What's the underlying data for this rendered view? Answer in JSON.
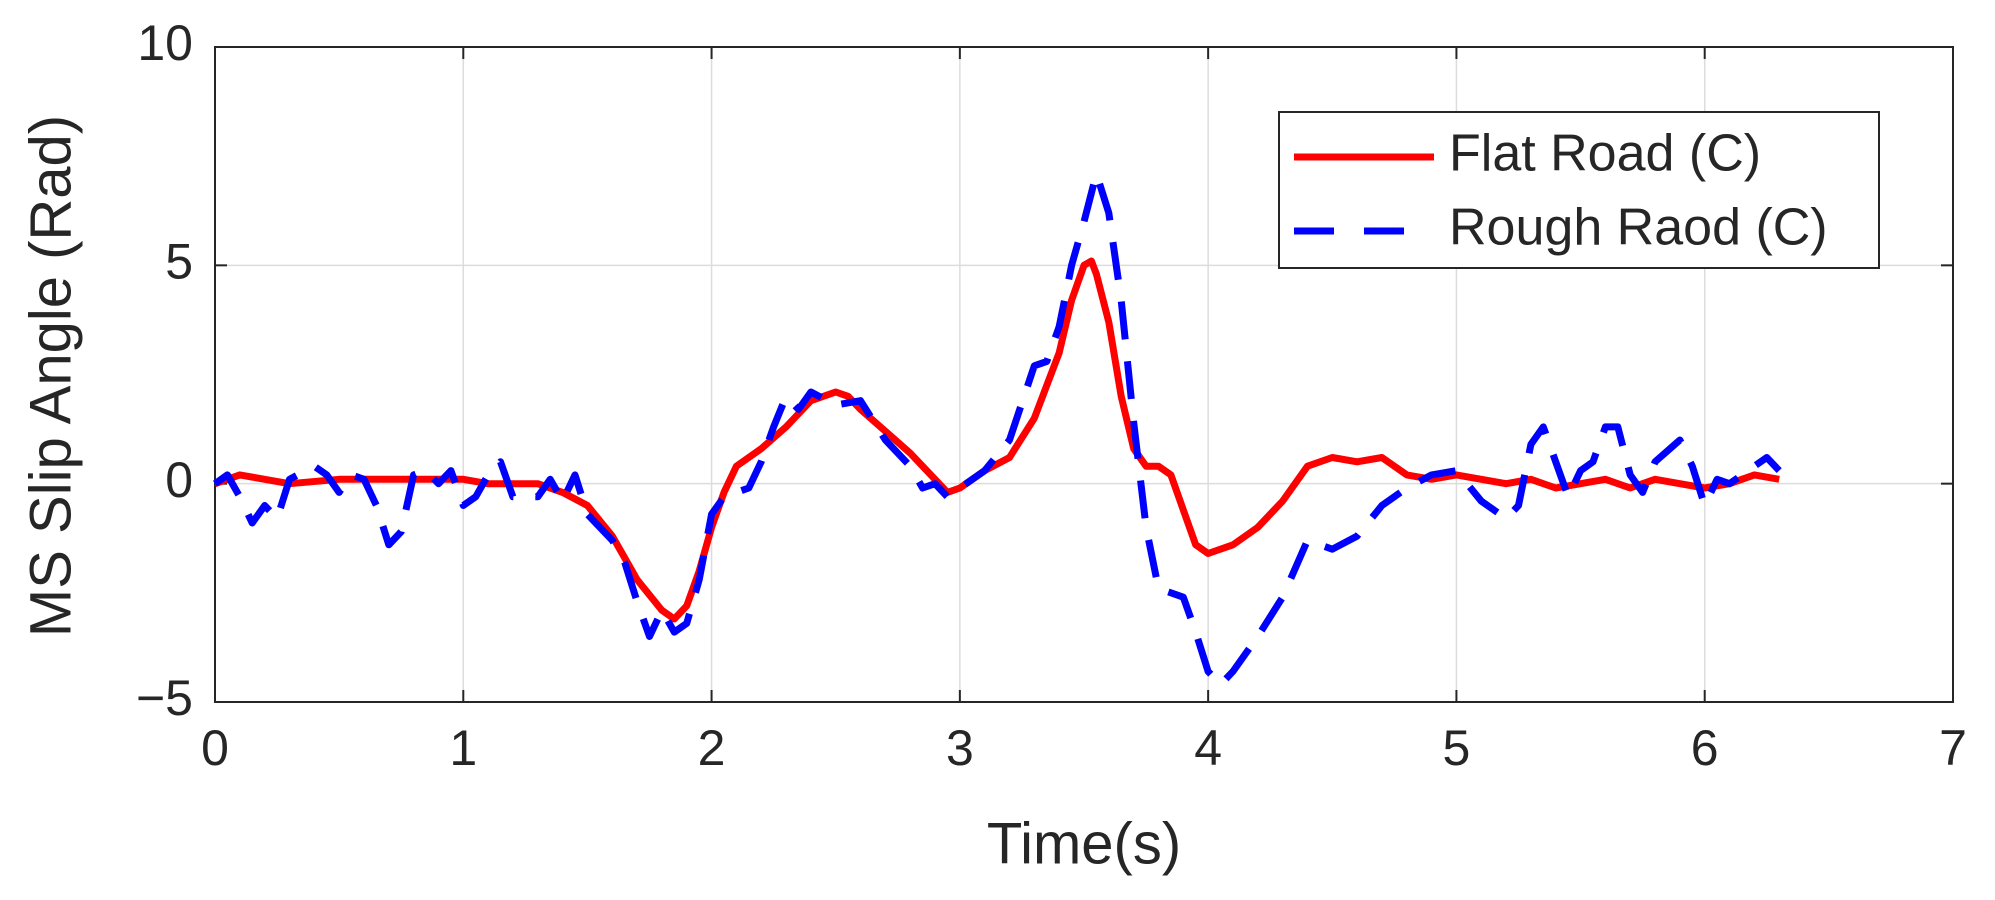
{
  "chart_data": {
    "type": "line",
    "xlabel": "Time(s)",
    "ylabel": "MS Slip Angle (Rad)",
    "xlim": [
      0,
      7
    ],
    "ylim": [
      -5,
      10
    ],
    "xticks": [
      0,
      1,
      2,
      3,
      4,
      5,
      6,
      7
    ],
    "yticks": [
      {
        "value": -5,
        "label": "−5"
      },
      0,
      5,
      10
    ],
    "grid": true,
    "legend": "upper right",
    "series": [
      {
        "name": "Flat Road (C)",
        "color": "#ff0000",
        "dash": "solid",
        "x": [
          0,
          0.1,
          0.2,
          0.3,
          0.5,
          0.7,
          0.9,
          1.0,
          1.1,
          1.3,
          1.4,
          1.5,
          1.6,
          1.7,
          1.8,
          1.85,
          1.9,
          1.95,
          2.0,
          2.05,
          2.1,
          2.2,
          2.3,
          2.4,
          2.5,
          2.55,
          2.6,
          2.7,
          2.8,
          2.9,
          2.95,
          3.0,
          3.1,
          3.2,
          3.3,
          3.4,
          3.45,
          3.5,
          3.53,
          3.55,
          3.6,
          3.65,
          3.7,
          3.75,
          3.8,
          3.85,
          3.9,
          3.95,
          4.0,
          4.1,
          4.2,
          4.3,
          4.4,
          4.5,
          4.6,
          4.7,
          4.8,
          4.9,
          5.0,
          5.1,
          5.2,
          5.3,
          5.4,
          5.5,
          5.6,
          5.7,
          5.8,
          5.9,
          6.0,
          6.1,
          6.2,
          6.3
        ],
        "values": [
          0,
          0.2,
          0.1,
          0,
          0.1,
          0.1,
          0.1,
          0.1,
          0,
          0,
          -0.2,
          -0.5,
          -1.2,
          -2.2,
          -2.9,
          -3.1,
          -2.8,
          -2.0,
          -1.0,
          -0.2,
          0.4,
          0.8,
          1.3,
          1.9,
          2.1,
          2.0,
          1.7,
          1.2,
          0.7,
          0.1,
          -0.2,
          -0.1,
          0.3,
          0.6,
          1.5,
          3.0,
          4.2,
          5.0,
          5.1,
          4.8,
          3.7,
          2.0,
          0.8,
          0.4,
          0.4,
          0.2,
          -0.6,
          -1.4,
          -1.6,
          -1.4,
          -1.0,
          -0.4,
          0.4,
          0.6,
          0.5,
          0.6,
          0.2,
          0.1,
          0.2,
          0.1,
          0,
          0.1,
          -0.1,
          0,
          0.1,
          -0.1,
          0.1,
          0,
          -0.1,
          0,
          0.2,
          0.1
        ]
      },
      {
        "name": "Rough Raod (C)",
        "color": "#0000ff",
        "dash": "dashed",
        "x": [
          0,
          0.05,
          0.1,
          0.15,
          0.2,
          0.25,
          0.3,
          0.4,
          0.45,
          0.5,
          0.55,
          0.6,
          0.65,
          0.7,
          0.75,
          0.8,
          0.85,
          0.9,
          0.95,
          1.0,
          1.05,
          1.1,
          1.15,
          1.2,
          1.3,
          1.35,
          1.4,
          1.45,
          1.5,
          1.6,
          1.65,
          1.7,
          1.75,
          1.8,
          1.85,
          1.9,
          1.95,
          2.0,
          2.05,
          2.1,
          2.15,
          2.2,
          2.25,
          2.3,
          2.35,
          2.4,
          2.5,
          2.6,
          2.7,
          2.8,
          2.85,
          2.9,
          2.95,
          3.0,
          3.1,
          3.2,
          3.3,
          3.35,
          3.4,
          3.45,
          3.5,
          3.55,
          3.6,
          3.65,
          3.7,
          3.75,
          3.8,
          3.85,
          3.9,
          3.95,
          4.0,
          4.05,
          4.1,
          4.2,
          4.3,
          4.4,
          4.5,
          4.6,
          4.7,
          4.8,
          4.9,
          5.0,
          5.1,
          5.2,
          5.25,
          5.3,
          5.35,
          5.4,
          5.45,
          5.5,
          5.55,
          5.6,
          5.65,
          5.7,
          5.75,
          5.8,
          5.9,
          5.95,
          6.0,
          6.05,
          6.1,
          6.2,
          6.25,
          6.3
        ],
        "values": [
          0,
          0.2,
          -0.3,
          -0.9,
          -0.5,
          -0.8,
          0.1,
          0.4,
          0.2,
          -0.2,
          0.2,
          0.1,
          -0.5,
          -1.4,
          -1.1,
          0.2,
          0.3,
          0,
          0.3,
          -0.5,
          -0.3,
          0.2,
          0.5,
          -0.3,
          -0.3,
          0.1,
          -0.4,
          0.2,
          -0.7,
          -1.3,
          -1.8,
          -2.7,
          -3.5,
          -2.9,
          -3.4,
          -3.2,
          -2.2,
          -0.7,
          -0.3,
          -0.2,
          -0.1,
          0.5,
          1.3,
          2.0,
          1.7,
          2.1,
          1.8,
          1.9,
          1.0,
          0.4,
          -0.1,
          0,
          -0.3,
          -0.1,
          0.3,
          1.0,
          2.7,
          2.8,
          3.6,
          5.0,
          6.0,
          7.1,
          6.2,
          4.2,
          1.4,
          -1.0,
          -2.4,
          -2.5,
          -2.6,
          -3.4,
          -4.3,
          -4.6,
          -4.3,
          -3.5,
          -2.6,
          -1.3,
          -1.5,
          -1.2,
          -0.5,
          -0.1,
          0.2,
          0.3,
          -0.4,
          -0.8,
          -0.5,
          0.9,
          1.3,
          0.5,
          -0.3,
          0.3,
          0.5,
          1.3,
          1.3,
          0.2,
          -0.2,
          0.5,
          1.0,
          0.4,
          -0.5,
          0.1,
          0,
          0.4,
          0.6,
          0.3
        ]
      }
    ]
  }
}
